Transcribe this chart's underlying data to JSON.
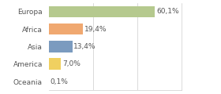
{
  "categories": [
    "Europa",
    "Africa",
    "Asia",
    "America",
    "Oceania"
  ],
  "values": [
    60.1,
    19.4,
    13.4,
    7.0,
    0.1
  ],
  "bar_colors": [
    "#b5c98e",
    "#f0a870",
    "#7b9bbf",
    "#f0d060",
    "#f4a080"
  ],
  "labels": [
    "60,1%",
    "19,4%",
    "13,4%",
    "7,0%",
    "0,1%"
  ],
  "background_color": "#ffffff",
  "xlim": [
    0,
    75
  ],
  "bar_height": 0.65,
  "label_fontsize": 6.5,
  "tick_fontsize": 6.5,
  "grid_lines": [
    25,
    50,
    75
  ],
  "grid_color": "#cccccc",
  "text_color": "#555555"
}
